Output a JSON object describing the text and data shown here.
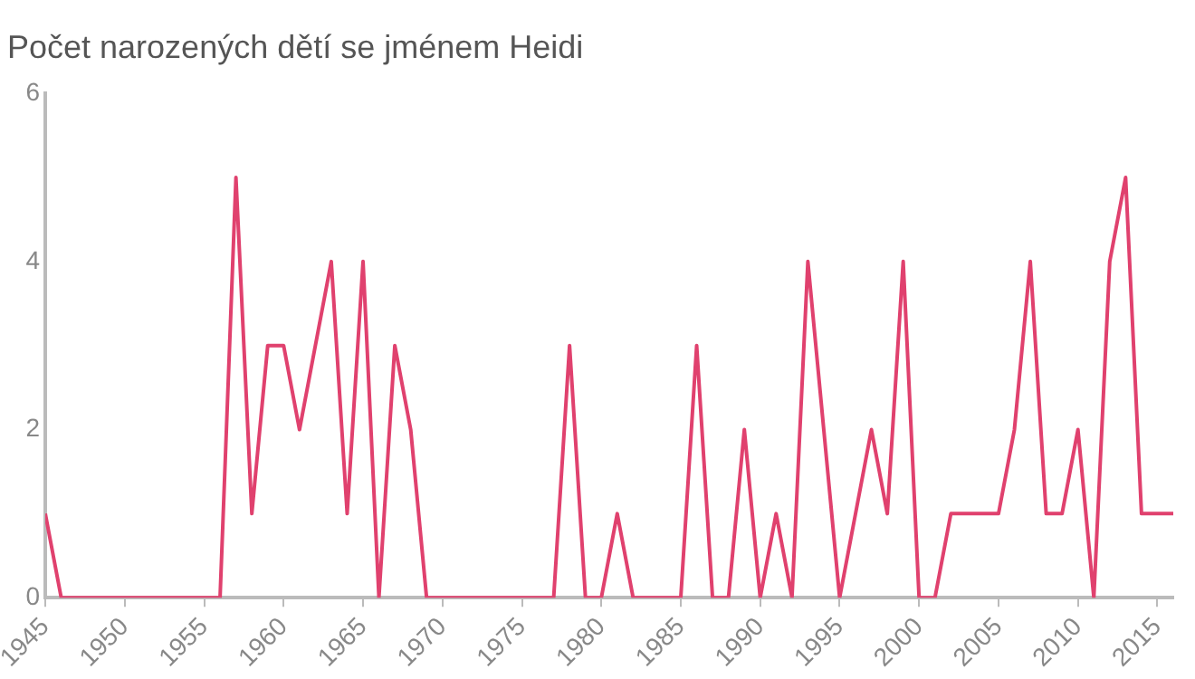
{
  "chart_data": {
    "type": "line",
    "title": "Počet narozených dětí se jménem Heidi",
    "x": [
      1945,
      1946,
      1947,
      1948,
      1949,
      1950,
      1951,
      1952,
      1953,
      1954,
      1955,
      1956,
      1957,
      1958,
      1959,
      1960,
      1961,
      1962,
      1963,
      1964,
      1965,
      1966,
      1967,
      1968,
      1969,
      1970,
      1971,
      1972,
      1973,
      1974,
      1975,
      1976,
      1977,
      1978,
      1979,
      1980,
      1981,
      1982,
      1983,
      1984,
      1985,
      1986,
      1987,
      1988,
      1989,
      1990,
      1991,
      1992,
      1993,
      1994,
      1995,
      1996,
      1997,
      1998,
      1999,
      2000,
      2001,
      2002,
      2003,
      2004,
      2005,
      2006,
      2007,
      2008,
      2009,
      2010,
      2011,
      2012,
      2013,
      2014,
      2015,
      2016
    ],
    "series": [
      {
        "color": "#e0416e",
        "values": [
          1,
          0,
          0,
          0,
          0,
          0,
          0,
          0,
          0,
          0,
          0,
          0,
          5,
          1,
          3,
          3,
          2,
          3,
          4,
          1,
          4,
          0,
          3,
          2,
          0,
          0,
          0,
          0,
          0,
          0,
          0,
          0,
          0,
          3,
          0,
          0,
          1,
          0,
          0,
          0,
          0,
          3,
          0,
          0,
          2,
          0,
          1,
          0,
          4,
          2,
          0,
          1,
          2,
          1,
          4,
          0,
          0,
          1,
          1,
          1,
          1,
          2,
          4,
          1,
          1,
          2,
          0,
          4,
          5,
          1,
          1,
          1
        ]
      }
    ],
    "xlim": [
      1945,
      2016
    ],
    "xticks": [
      1945,
      1950,
      1955,
      1960,
      1965,
      1970,
      1975,
      1980,
      1985,
      1990,
      1995,
      2000,
      2005,
      2010,
      2015
    ],
    "ylim": [
      0,
      6
    ],
    "yticks": [
      0,
      2,
      4,
      6
    ],
    "grid": false,
    "legend": false,
    "marker": "none",
    "line_style": "solid"
  }
}
